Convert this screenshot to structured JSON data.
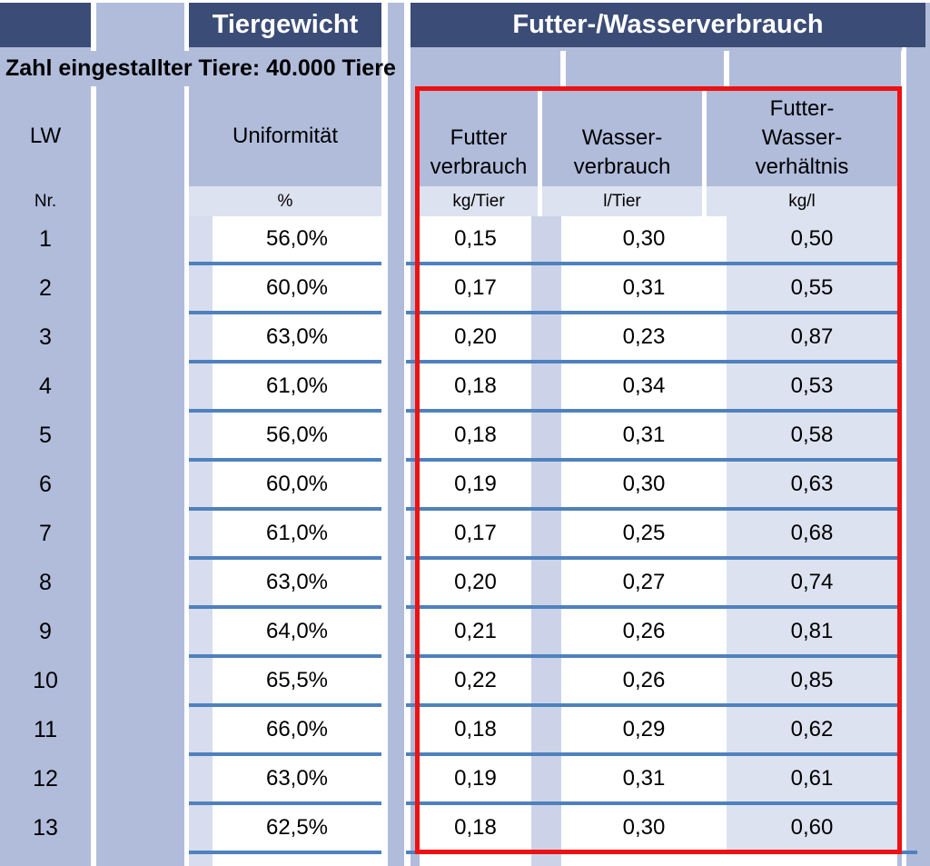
{
  "titles": {
    "tiergewicht": "Tiergewicht",
    "futter_wasser": "Futter-/Wasserverbrauch"
  },
  "info_line": "Zahl eingestallter Tiere: 40.000 Tiere",
  "columns": {
    "lw": {
      "label": "LW",
      "unit": "Nr."
    },
    "uniformitaet": {
      "label": "Uniformität",
      "unit": "%"
    },
    "futter": {
      "label_lines": [
        "Futter",
        "verbrauch"
      ],
      "unit": "kg/Tier"
    },
    "wasser": {
      "label_lines": [
        "Wasser-",
        "verbrauch"
      ],
      "unit": "l/Tier"
    },
    "verhaeltnis": {
      "label_lines": [
        "Futter-",
        "Wasser-",
        "verhältnis"
      ],
      "unit": "kg/l"
    }
  },
  "rows": [
    {
      "nr": "1",
      "uniformitaet": "56,0%",
      "futter": "0,15",
      "wasser": "0,30",
      "verhaeltnis": "0,50"
    },
    {
      "nr": "2",
      "uniformitaet": "60,0%",
      "futter": "0,17",
      "wasser": "0,31",
      "verhaeltnis": "0,55"
    },
    {
      "nr": "3",
      "uniformitaet": "63,0%",
      "futter": "0,20",
      "wasser": "0,23",
      "verhaeltnis": "0,87"
    },
    {
      "nr": "4",
      "uniformitaet": "61,0%",
      "futter": "0,18",
      "wasser": "0,34",
      "verhaeltnis": "0,53"
    },
    {
      "nr": "5",
      "uniformitaet": "56,0%",
      "futter": "0,18",
      "wasser": "0,31",
      "verhaeltnis": "0,58"
    },
    {
      "nr": "6",
      "uniformitaet": "60,0%",
      "futter": "0,19",
      "wasser": "0,30",
      "verhaeltnis": "0,63"
    },
    {
      "nr": "7",
      "uniformitaet": "61,0%",
      "futter": "0,17",
      "wasser": "0,25",
      "verhaeltnis": "0,68"
    },
    {
      "nr": "8",
      "uniformitaet": "63,0%",
      "futter": "0,20",
      "wasser": "0,27",
      "verhaeltnis": "0,74"
    },
    {
      "nr": "9",
      "uniformitaet": "64,0%",
      "futter": "0,21",
      "wasser": "0,26",
      "verhaeltnis": "0,81"
    },
    {
      "nr": "10",
      "uniformitaet": "65,5%",
      "futter": "0,22",
      "wasser": "0,26",
      "verhaeltnis": "0,85"
    },
    {
      "nr": "11",
      "uniformitaet": "66,0%",
      "futter": "0,18",
      "wasser": "0,29",
      "verhaeltnis": "0,62"
    },
    {
      "nr": "12",
      "uniformitaet": "63,0%",
      "futter": "0,19",
      "wasser": "0,31",
      "verhaeltnis": "0,61"
    },
    {
      "nr": "13",
      "uniformitaet": "62,5%",
      "futter": "0,18",
      "wasser": "0,30",
      "verhaeltnis": "0,60"
    }
  ],
  "colors": {
    "header_navy": "#3b4c76",
    "background_periwinkle": "#b1bcdb",
    "cell_lavender": "#dde2f0",
    "row_line_blue": "#4f81bd",
    "highlight_red": "#ee1111",
    "cell_white": "#ffffff"
  }
}
